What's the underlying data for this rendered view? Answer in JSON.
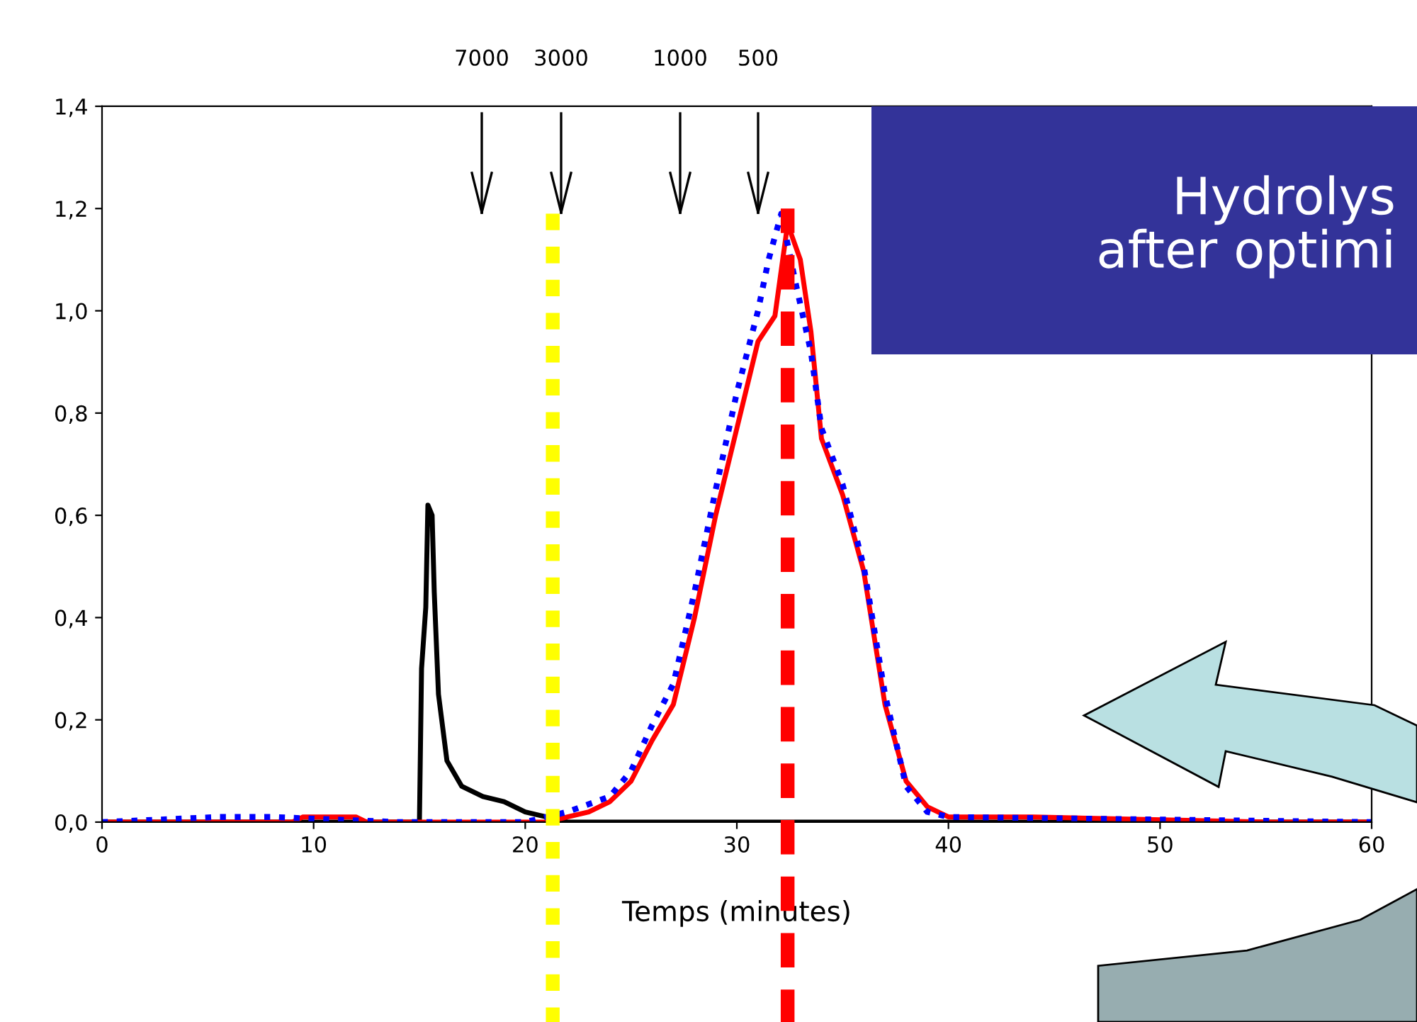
{
  "chart_data": {
    "type": "line",
    "xlabel": "Temps (minutes)",
    "xlim": [
      0,
      60
    ],
    "xticks": [
      0,
      10,
      20,
      30,
      40,
      50,
      60
    ],
    "ylim": [
      0,
      1.4
    ],
    "yticks": [
      {
        "value": 0,
        "label": "0,0"
      },
      {
        "value": 0.2,
        "label": "0,2"
      },
      {
        "value": 0.4,
        "label": "0,4"
      },
      {
        "value": 0.6,
        "label": "0,6"
      },
      {
        "value": 0.8,
        "label": "0,8"
      },
      {
        "value": 1.0,
        "label": "1,0"
      },
      {
        "value": 1.2,
        "label": "1,2"
      },
      {
        "value": 1.4,
        "label": "1,4"
      }
    ],
    "grid": false,
    "legend": false,
    "series": [
      {
        "color": "#000000",
        "line_style": "solid",
        "x": [
          0,
          14.8,
          15.0,
          15.1,
          15.3,
          15.4,
          15.6,
          15.7,
          15.9,
          16.3,
          17,
          18,
          19,
          20,
          21,
          22,
          32.5,
          33,
          60
        ],
        "values": [
          0,
          0,
          0,
          0.3,
          0.42,
          0.62,
          0.6,
          0.45,
          0.25,
          0.12,
          0.07,
          0.05,
          0.04,
          0.02,
          0.01,
          0,
          0,
          0,
          0
        ]
      },
      {
        "color": "#ff0000",
        "line_style": "solid",
        "x": [
          0,
          9,
          9.5,
          12,
          12.5,
          21,
          22,
          23,
          24,
          25,
          26,
          27,
          28,
          29,
          30,
          31,
          31.8,
          32.4,
          33,
          33.5,
          34,
          35,
          36,
          37,
          38,
          39,
          40,
          44,
          55,
          60
        ],
        "values": [
          0,
          0,
          0.01,
          0.01,
          0,
          0,
          0.01,
          0.02,
          0.04,
          0.08,
          0.16,
          0.23,
          0.4,
          0.6,
          0.77,
          0.94,
          0.99,
          1.17,
          1.1,
          0.96,
          0.75,
          0.64,
          0.49,
          0.23,
          0.08,
          0.03,
          0.01,
          0.01,
          0,
          0
        ]
      },
      {
        "color": "#0000ff",
        "line_style": "dotted",
        "x": [
          0,
          5.5,
          8,
          14,
          20,
          22,
          24,
          25,
          26,
          27,
          28,
          29,
          30,
          31,
          31.5,
          32.1,
          32.8,
          33.5,
          34,
          35,
          36,
          37,
          38,
          39,
          40,
          60
        ],
        "values": [
          0,
          0.01,
          0.01,
          0,
          0,
          0.02,
          0.05,
          0.1,
          0.19,
          0.27,
          0.45,
          0.65,
          0.84,
          1.0,
          1.1,
          1.19,
          1.05,
          0.92,
          0.77,
          0.66,
          0.5,
          0.25,
          0.07,
          0.02,
          0.01,
          0
        ]
      }
    ],
    "ref_lines": [
      {
        "axis": "x",
        "value": 21.3,
        "color": "#ffff00",
        "line_style": "dotted"
      },
      {
        "axis": "x",
        "value": 32.4,
        "color": "#ff0000",
        "line_style": "dashed"
      }
    ],
    "annotations": [
      "7000",
      "3000",
      "1000",
      "500",
      "Hydrolys\nafter optimi"
    ]
  }
}
